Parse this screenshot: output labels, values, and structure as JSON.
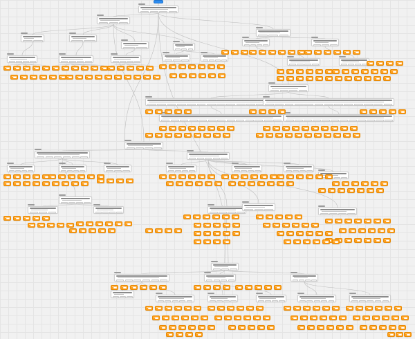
{
  "canvas": {
    "background": "#f1f1f1",
    "grid_color": "#e4e4e4",
    "edge_color": "#bdbdbd"
  },
  "node_types": {
    "start": {
      "color": "#2d8cf0",
      "icon": "start-node-icon"
    },
    "question": {
      "color": "#ffffff",
      "icon": "question-node-icon"
    },
    "result": {
      "color": "#ff9f1a",
      "icon": "result-node-icon"
    }
  }
}
